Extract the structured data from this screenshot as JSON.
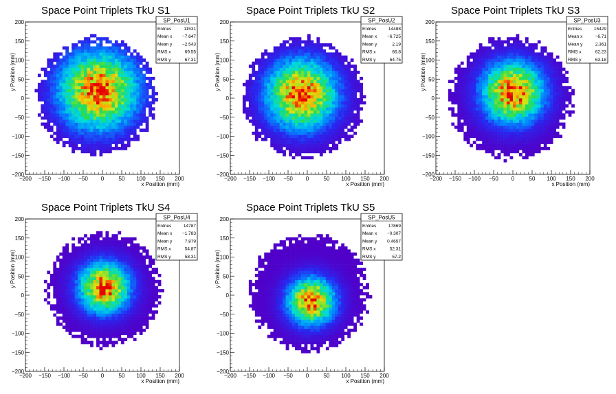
{
  "chart_data": [
    {
      "type": "heatmap",
      "title": "Space Point Triplets TkU S1",
      "xlabel": "x Position (mm)",
      "ylabel": "y Position (mm)",
      "xlim": [
        -200,
        200
      ],
      "ylim": [
        -200,
        200
      ],
      "xticks": [
        "−200",
        "−150",
        "−100",
        "−50",
        "0",
        "50",
        "100",
        "150",
        "200"
      ],
      "yticks": [
        "−200",
        "−150",
        "−100",
        "−50",
        "0",
        "50",
        "100",
        "150",
        "200"
      ],
      "stats": {
        "name": "SP_PosU1",
        "rows": [
          {
            "label": "Entries",
            "value": "11531"
          },
          {
            "label": "Mean x",
            "value": "−7.647"
          },
          {
            "label": "Mean y",
            "value": "−2.543"
          },
          {
            "label": "RMS x",
            "value": "69.55"
          },
          {
            "label": "RMS y",
            "value": "67.31"
          }
        ]
      },
      "distribution": {
        "radius": 155,
        "center_x": -15,
        "center_y": 5,
        "sigma": 70,
        "hot_x": -10,
        "hot_y": 20,
        "seed": 11
      }
    },
    {
      "type": "heatmap",
      "title": "Space Point Triplets TkU S2",
      "xlabel": "x Position (mm)",
      "ylabel": "y Position (mm)",
      "xlim": [
        -200,
        200
      ],
      "ylim": [
        -200,
        200
      ],
      "xticks": [
        "−200",
        "−150",
        "−100",
        "−50",
        "0",
        "50",
        "100",
        "150",
        "200"
      ],
      "yticks": [
        "−200",
        "−150",
        "−100",
        "−50",
        "0",
        "50",
        "100",
        "150",
        "200"
      ],
      "stats": {
        "name": "SP_PosU2",
        "rows": [
          {
            "label": "Entries",
            "value": "14488"
          },
          {
            "label": "Mean x",
            "value": "−6.725"
          },
          {
            "label": "Mean y",
            "value": "2.19"
          },
          {
            "label": "RMS x",
            "value": "66.8"
          },
          {
            "label": "RMS y",
            "value": "64.75"
          }
        ]
      },
      "distribution": {
        "radius": 158,
        "center_x": -10,
        "center_y": 0,
        "sigma": 62,
        "hot_x": -15,
        "hot_y": 10,
        "seed": 22
      }
    },
    {
      "type": "heatmap",
      "title": "Space Point Triplets TkU S3",
      "xlabel": "x Position (mm)",
      "ylabel": "y Position (mm)",
      "xlim": [
        -200,
        200
      ],
      "ylim": [
        -200,
        200
      ],
      "xticks": [
        "−200",
        "−150",
        "−100",
        "−50",
        "0",
        "50",
        "100",
        "150",
        "200"
      ],
      "yticks": [
        "−200",
        "−150",
        "−100",
        "−50",
        "0",
        "50",
        "100",
        "150",
        "200"
      ],
      "stats": {
        "name": "SP_PosU3",
        "rows": [
          {
            "label": "Entries",
            "value": "15429"
          },
          {
            "label": "Mean x",
            "value": "−6.71"
          },
          {
            "label": "Mean y",
            "value": "2.361"
          },
          {
            "label": "RMS x",
            "value": "62.23"
          },
          {
            "label": "RMS y",
            "value": "63.18"
          }
        ]
      },
      "distribution": {
        "radius": 160,
        "center_x": -5,
        "center_y": 0,
        "sigma": 55,
        "hot_x": 0,
        "hot_y": 15,
        "seed": 33
      }
    },
    {
      "type": "heatmap",
      "title": "Space Point Triplets TkU S4",
      "xlabel": "x Position (mm)",
      "ylabel": "y Position (mm)",
      "xlim": [
        -200,
        200
      ],
      "ylim": [
        -200,
        200
      ],
      "xticks": [
        "−200",
        "−150",
        "−100",
        "−50",
        "0",
        "50",
        "100",
        "150",
        "200"
      ],
      "yticks": [
        "−200",
        "−150",
        "−100",
        "−50",
        "0",
        "50",
        "100",
        "150",
        "200"
      ],
      "stats": {
        "name": "SP_PosU4",
        "rows": [
          {
            "label": "Entries",
            "value": "14787"
          },
          {
            "label": "Mean x",
            "value": "−1.783"
          },
          {
            "label": "Mean y",
            "value": "7.879"
          },
          {
            "label": "RMS x",
            "value": "54.87"
          },
          {
            "label": "RMS y",
            "value": "58.31"
          }
        ]
      },
      "distribution": {
        "radius": 150,
        "center_x": 5,
        "center_y": 15,
        "sigma": 45,
        "hot_x": 5,
        "hot_y": 20,
        "seed": 44
      }
    },
    {
      "type": "heatmap",
      "title": "Space Point Triplets TkU S5",
      "xlabel": "x Position (mm)",
      "ylabel": "y Position (mm)",
      "xlim": [
        -200,
        200
      ],
      "ylim": [
        -200,
        200
      ],
      "xticks": [
        "−200",
        "−150",
        "−100",
        "−50",
        "0",
        "50",
        "100",
        "150",
        "200"
      ],
      "yticks": [
        "−200",
        "−150",
        "−100",
        "−50",
        "0",
        "50",
        "100",
        "150",
        "200"
      ],
      "stats": {
        "name": "SP_PosU5",
        "rows": [
          {
            "label": "Entries",
            "value": "17869"
          },
          {
            "label": "Mean x",
            "value": "−0.307"
          },
          {
            "label": "Mean y",
            "value": "0.4657"
          },
          {
            "label": "RMS x",
            "value": "52.31"
          },
          {
            "label": "RMS y",
            "value": "57.2"
          }
        ]
      },
      "distribution": {
        "radius": 155,
        "center_x": 5,
        "center_y": 5,
        "sigma": 42,
        "hot_x": 10,
        "hot_y": -15,
        "seed": 55
      }
    }
  ]
}
